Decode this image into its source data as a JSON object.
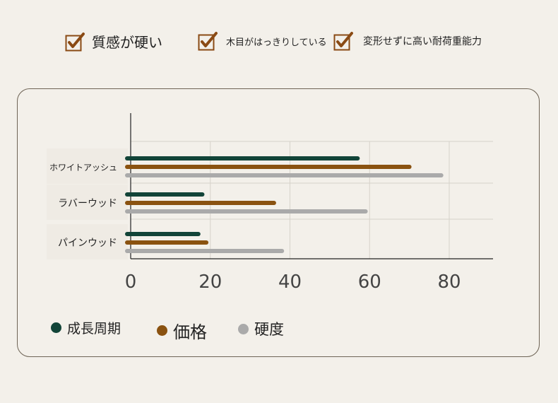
{
  "features": [
    {
      "label": "質感が硬い",
      "icon": "check-icon"
    },
    {
      "label": "木目がはっきりしている",
      "icon": "check-icon"
    },
    {
      "label": "変形せずに高い耐荷重能力",
      "icon": "check-icon"
    }
  ],
  "colors": {
    "check": "#8a4a14",
    "series": [
      "#124438",
      "#8a5210",
      "#aaaaaa"
    ],
    "grid": "#d6d2ca",
    "axis": "#222222"
  },
  "chart_data": {
    "type": "bar",
    "orientation": "horizontal",
    "categories": [
      "ホワイトアッシュ",
      "ラバーウッド",
      "パインウッド"
    ],
    "series": [
      {
        "name": "成長周期",
        "values": [
          57,
          18,
          17
        ]
      },
      {
        "name": "価格",
        "values": [
          70,
          36,
          19
        ]
      },
      {
        "name": "硬度",
        "values": [
          78,
          59,
          38
        ]
      }
    ],
    "xticks": [
      0,
      20,
      40,
      60,
      80
    ],
    "xlim": [
      0,
      91
    ],
    "grid": true,
    "legend_position": "bottom"
  }
}
